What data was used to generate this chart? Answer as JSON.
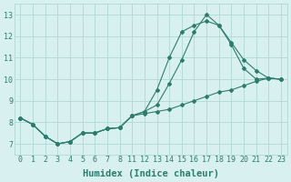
{
  "line1_x": [
    0,
    1,
    2,
    3,
    4,
    5,
    6,
    7,
    8,
    11,
    12,
    13,
    14,
    15,
    16,
    17,
    18,
    19,
    20,
    21,
    22,
    23
  ],
  "line1_y": [
    8.2,
    7.9,
    7.35,
    7.0,
    7.1,
    7.5,
    7.5,
    7.7,
    7.75,
    8.3,
    8.5,
    8.8,
    9.8,
    10.9,
    12.2,
    13.0,
    12.5,
    11.7,
    10.9,
    10.4,
    10.05,
    10.0
  ],
  "line2_x": [
    0,
    1,
    2,
    3,
    4,
    5,
    6,
    7,
    8,
    11,
    12,
    13,
    14,
    15,
    16,
    17,
    18,
    19,
    20,
    21,
    22,
    23
  ],
  "line2_y": [
    8.2,
    7.9,
    7.35,
    7.0,
    7.1,
    7.5,
    7.5,
    7.7,
    7.75,
    8.3,
    8.5,
    9.5,
    11.0,
    12.2,
    12.5,
    12.7,
    12.5,
    11.6,
    10.5,
    10.0,
    10.05,
    10.0
  ],
  "line3_x": [
    0,
    1,
    2,
    3,
    4,
    5,
    6,
    7,
    8,
    11,
    12,
    13,
    14,
    15,
    16,
    17,
    18,
    19,
    20,
    21,
    22,
    23
  ],
  "line3_y": [
    8.2,
    7.9,
    7.35,
    7.0,
    7.1,
    7.5,
    7.5,
    7.7,
    7.75,
    8.3,
    8.4,
    8.5,
    8.6,
    8.8,
    9.0,
    9.2,
    9.4,
    9.5,
    9.7,
    9.9,
    10.05,
    10.0
  ],
  "xtick_labels": [
    "0",
    "1",
    "2",
    "3",
    "4",
    "5",
    "6",
    "7",
    "8",
    "11",
    "12",
    "13",
    "14",
    "15",
    "16",
    "17",
    "18",
    "19",
    "20",
    "21",
    "22",
    "23"
  ],
  "line_color": "#2d7d6e",
  "bg_color": "#d8f0f0",
  "grid_color": "#b0d8d8",
  "xlabel": "Humidex (Indice chaleur)",
  "yticks": [
    7,
    8,
    9,
    10,
    11,
    12,
    13
  ],
  "ylim": [
    6.5,
    13.5
  ],
  "xlabel_fontsize": 7.5,
  "tick_fontsize": 6
}
